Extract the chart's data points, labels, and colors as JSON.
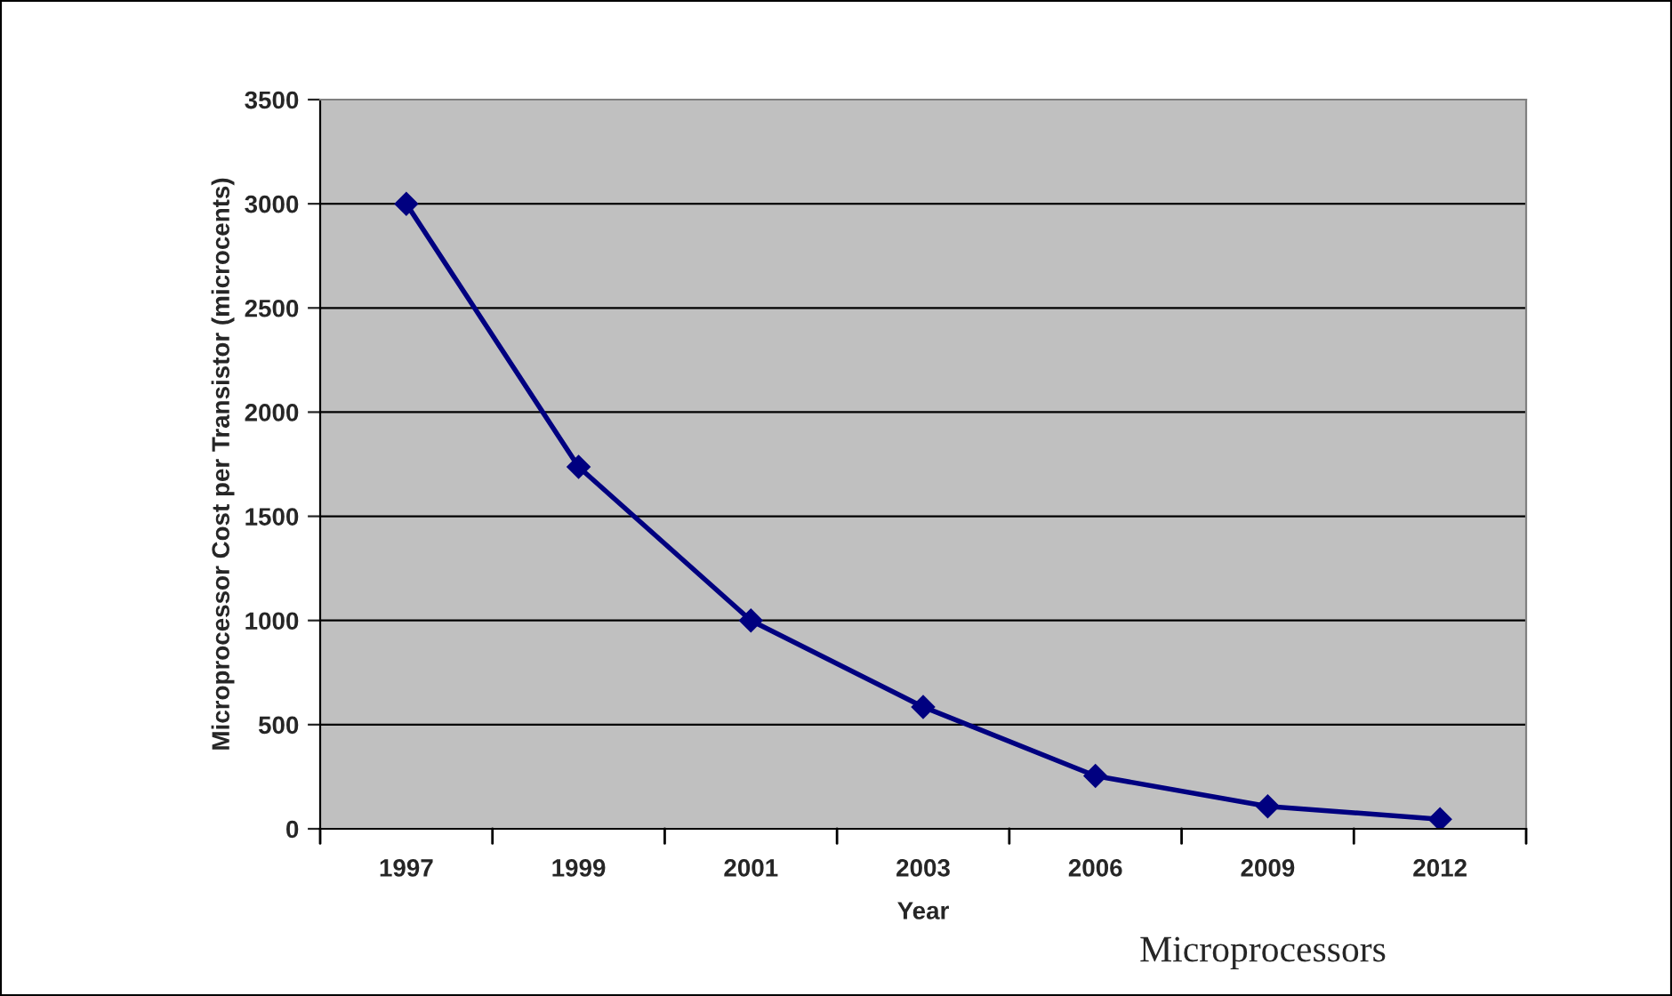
{
  "chart_data": {
    "type": "line",
    "categories": [
      "1997",
      "1999",
      "2001",
      "2003",
      "2006",
      "2009",
      "2012"
    ],
    "series": [
      {
        "color": "#000080",
        "values": [
          3000,
          1737,
          1000,
          585,
          254,
          108,
          46
        ]
      }
    ],
    "xlabel": "Year",
    "ylabel": "Microprocessor Cost per Transistor (microcents)",
    "ylim": [
      0,
      3500
    ],
    "yticks": [
      0,
      500,
      1000,
      1500,
      2000,
      2500,
      3000,
      3500
    ],
    "grid": "y",
    "marker": "diamond",
    "line_style": "solid",
    "annotations": [
      "Microprocessors"
    ]
  }
}
